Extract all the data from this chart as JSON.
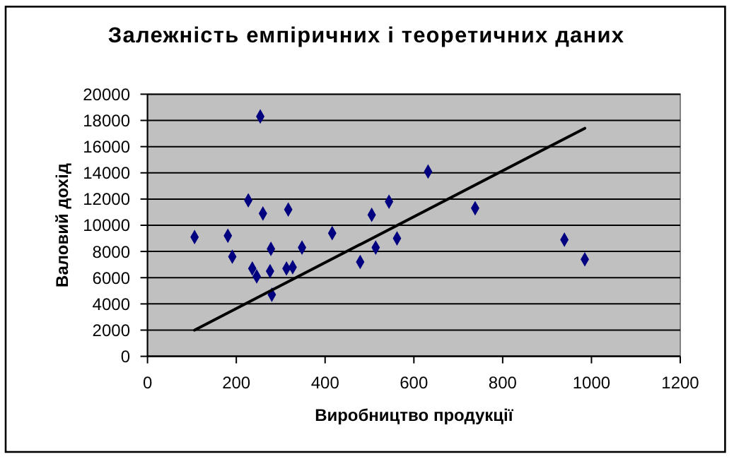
{
  "chart_data": {
    "type": "scatter",
    "title": "Залежність емпіричних і теоретичних даних",
    "xlabel": "Виробництво продукції",
    "ylabel": "Валовий дохід",
    "xlim": [
      0,
      1200
    ],
    "xticks": [
      0,
      200,
      400,
      600,
      800,
      1000,
      1200
    ],
    "ylim": [
      0,
      20000
    ],
    "yticks": [
      0,
      2000,
      4000,
      6000,
      8000,
      10000,
      12000,
      14000,
      16000,
      18000,
      20000
    ],
    "grid": "y",
    "marker": "diamond",
    "series": [
      {
        "color": "#000080",
        "x": [
          106,
          181,
          191,
          227,
          236,
          254,
          246,
          260,
          278,
          276,
          280,
          317,
          313,
          327,
          348,
          416,
          479,
          505,
          514,
          544,
          562,
          632,
          738,
          939,
          985
        ],
        "values": [
          9100,
          9200,
          7600,
          11900,
          6700,
          18300,
          6100,
          10900,
          8200,
          6500,
          4700,
          11200,
          6700,
          6800,
          8300,
          9400,
          7200,
          10800,
          8300,
          11800,
          9000,
          14100,
          11300,
          8900,
          7400
        ]
      },
      {
        "type": "line",
        "color": "#000000",
        "marker": "none",
        "line_style": "solid",
        "x": [
          106,
          985
        ],
        "values": [
          2000,
          17400
        ]
      }
    ]
  }
}
